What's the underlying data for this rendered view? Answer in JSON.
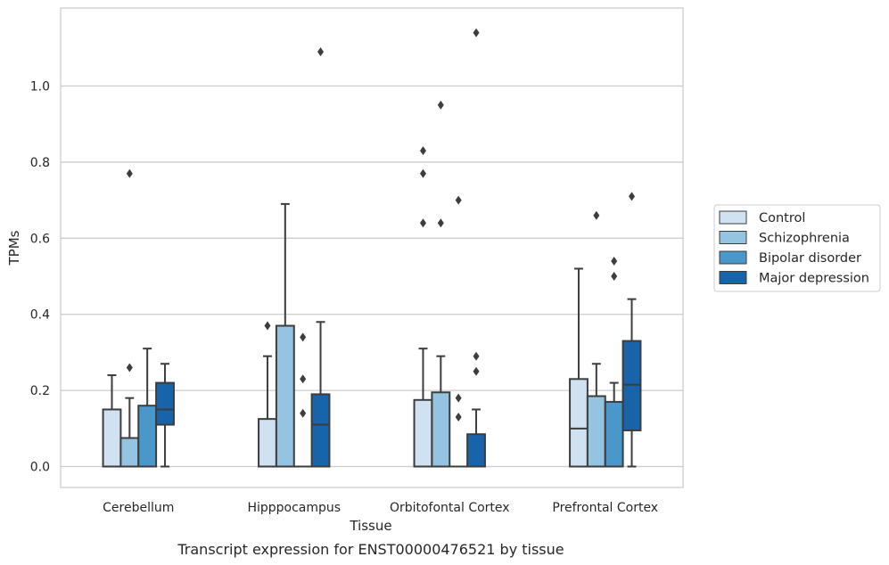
{
  "chart_data": {
    "type": "box",
    "title": "",
    "caption": "Transcript expression for ENST00000476521 by tissue",
    "xlabel": "Tissue",
    "ylabel": "TPMs",
    "ylim": [
      -0.055,
      1.205
    ],
    "yticks": [
      0.0,
      0.2,
      0.4,
      0.6,
      0.8,
      1.0
    ],
    "ytick_labels": [
      "0.0",
      "0.2",
      "0.4",
      "0.6",
      "0.8",
      "1.0"
    ],
    "grid": "horizontal",
    "legend_position": "right",
    "categories": [
      "Cerebellum",
      "Hipppocampus",
      "Orbitofontal Cortex",
      "Prefrontal Cortex"
    ],
    "series": [
      {
        "name": "Control",
        "color": "#d0e1f2",
        "boxes": [
          {
            "q1": 0.0,
            "median": 0.0,
            "q3": 0.15,
            "whisker_low": 0.0,
            "whisker_high": 0.24,
            "outliers": []
          },
          {
            "q1": 0.0,
            "median": 0.0,
            "q3": 0.125,
            "whisker_low": 0.0,
            "whisker_high": 0.29,
            "outliers": [
              0.37
            ]
          },
          {
            "q1": 0.0,
            "median": 0.0,
            "q3": 0.175,
            "whisker_low": 0.0,
            "whisker_high": 0.31,
            "outliers": [
              0.64,
              0.77,
              0.83
            ]
          },
          {
            "q1": 0.0,
            "median": 0.1,
            "q3": 0.23,
            "whisker_low": 0.0,
            "whisker_high": 0.52,
            "outliers": []
          }
        ]
      },
      {
        "name": "Schizophrenia",
        "color": "#94c4df",
        "boxes": [
          {
            "q1": 0.0,
            "median": 0.0,
            "q3": 0.075,
            "whisker_low": 0.0,
            "whisker_high": 0.18,
            "outliers": [
              0.26,
              0.77
            ]
          },
          {
            "q1": 0.0,
            "median": 0.0,
            "q3": 0.37,
            "whisker_low": 0.0,
            "whisker_high": 0.69,
            "outliers": []
          },
          {
            "q1": 0.0,
            "median": 0.0,
            "q3": 0.195,
            "whisker_low": 0.0,
            "whisker_high": 0.29,
            "outliers": [
              0.64,
              0.95
            ]
          },
          {
            "q1": 0.0,
            "median": 0.0,
            "q3": 0.185,
            "whisker_low": 0.0,
            "whisker_high": 0.27,
            "outliers": [
              0.66
            ]
          }
        ]
      },
      {
        "name": "Bipolar disorder",
        "color": "#4a98c9",
        "boxes": [
          {
            "q1": 0.0,
            "median": 0.0,
            "q3": 0.16,
            "whisker_low": 0.0,
            "whisker_high": 0.31,
            "outliers": []
          },
          {
            "q1": 0.0,
            "median": 0.0,
            "q3": 0.0,
            "whisker_low": 0.0,
            "whisker_high": 0.0,
            "outliers": [
              0.14,
              0.23,
              0.34
            ]
          },
          {
            "q1": 0.0,
            "median": 0.0,
            "q3": 0.0,
            "whisker_low": 0.0,
            "whisker_high": 0.0,
            "outliers": [
              0.13,
              0.18,
              0.7
            ]
          },
          {
            "q1": 0.0,
            "median": 0.0,
            "q3": 0.17,
            "whisker_low": 0.0,
            "whisker_high": 0.22,
            "outliers": [
              0.5,
              0.54
            ]
          }
        ]
      },
      {
        "name": "Major depression",
        "color": "#1764ab",
        "boxes": [
          {
            "q1": 0.11,
            "median": 0.15,
            "q3": 0.22,
            "whisker_low": 0.0,
            "whisker_high": 0.27,
            "outliers": []
          },
          {
            "q1": 0.0,
            "median": 0.11,
            "q3": 0.19,
            "whisker_low": 0.0,
            "whisker_high": 0.38,
            "outliers": [
              1.09
            ]
          },
          {
            "q1": 0.0,
            "median": 0.0,
            "q3": 0.085,
            "whisker_low": 0.0,
            "whisker_high": 0.15,
            "outliers": [
              0.25,
              0.29,
              1.14
            ]
          },
          {
            "q1": 0.095,
            "median": 0.215,
            "q3": 0.33,
            "whisker_low": 0.0,
            "whisker_high": 0.44,
            "outliers": [
              0.71
            ]
          }
        ]
      }
    ]
  }
}
